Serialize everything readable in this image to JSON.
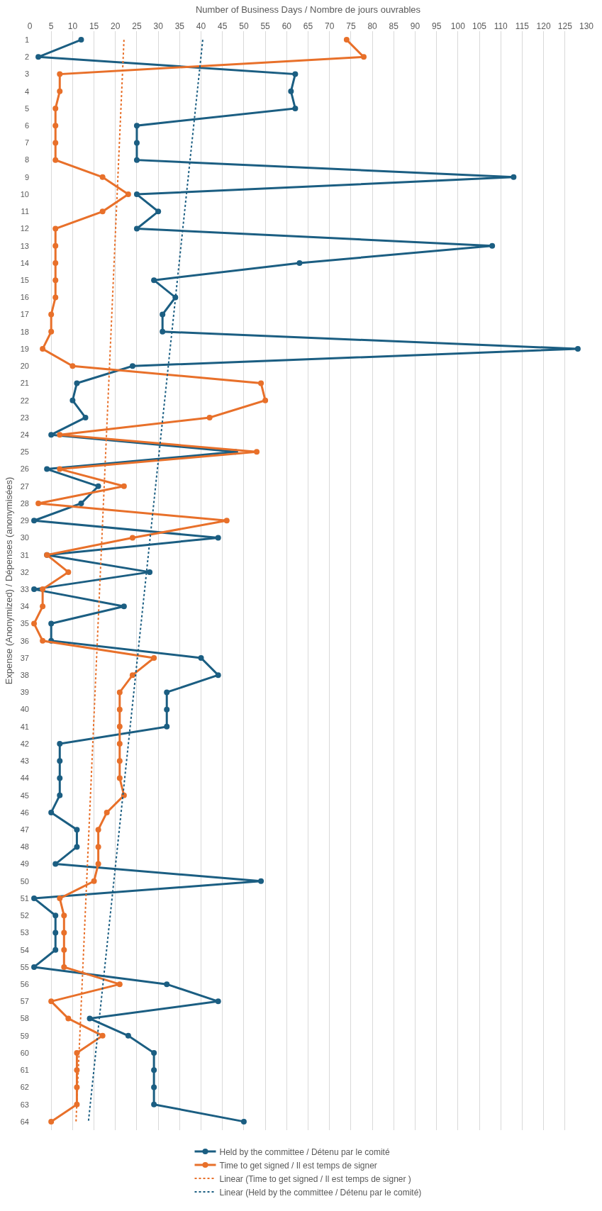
{
  "chart_data": {
    "type": "line",
    "orientation": "horizontal",
    "xlabel": "Number of Business Days / Nombre de jours ouvrables",
    "ylabel": "Expense (Anonymized) / Dépenses (anonymisées)",
    "categories": [
      "1",
      "2",
      "3",
      "4",
      "5",
      "6",
      "7",
      "8",
      "9",
      "10",
      "11",
      "12",
      "13",
      "14",
      "15",
      "16",
      "17",
      "18",
      "19",
      "20",
      "21",
      "22",
      "23",
      "24",
      "25",
      "26",
      "27",
      "28",
      "29",
      "30",
      "31",
      "32",
      "33",
      "34",
      "35",
      "36",
      "37",
      "38",
      "39",
      "40",
      "41",
      "42",
      "43",
      "44",
      "45",
      "46",
      "47",
      "48",
      "49",
      "50",
      "51",
      "52",
      "53",
      "54",
      "55",
      "56",
      "57",
      "58",
      "59",
      "60",
      "61",
      "62",
      "63",
      "64"
    ],
    "xlim": [
      0,
      130
    ],
    "xticks": [
      0,
      5,
      10,
      15,
      20,
      25,
      30,
      35,
      40,
      45,
      50,
      55,
      60,
      65,
      70,
      75,
      80,
      85,
      90,
      95,
      100,
      105,
      110,
      115,
      120,
      125,
      130
    ],
    "grid": "x",
    "legend": "bottom",
    "marker": "circle",
    "line_style": "solid",
    "series": [
      {
        "name": "Held by the committee / Détenu par le comité",
        "color": "#1b5e82",
        "values": [
          12,
          2,
          62,
          61,
          62,
          25,
          25,
          25,
          113,
          25,
          30,
          25,
          108,
          63,
          29,
          34,
          31,
          31,
          128,
          24,
          11,
          10,
          13,
          5,
          48,
          4,
          16,
          12,
          1,
          44,
          4,
          28,
          1,
          22,
          5,
          5,
          40,
          44,
          32,
          32,
          32,
          7,
          7,
          7,
          7,
          5,
          11,
          11,
          6,
          54,
          1,
          6,
          6,
          6,
          1,
          32,
          44,
          14,
          23,
          29,
          29,
          29,
          29,
          50
        ]
      },
      {
        "name": "Time to get signed / Il est temps de signer",
        "color": "#e8702a",
        "values": [
          74,
          78,
          7,
          7,
          6,
          6,
          6,
          6,
          17,
          23,
          17,
          6,
          6,
          6,
          6,
          6,
          5,
          5,
          3,
          10,
          54,
          55,
          42,
          7,
          53,
          7,
          22,
          2,
          46,
          24,
          4,
          9,
          3,
          3,
          1,
          3,
          29,
          24,
          21,
          21,
          21,
          21,
          21,
          21,
          22,
          18,
          16,
          16,
          16,
          15,
          7,
          8,
          8,
          8,
          8,
          21,
          5,
          9,
          17,
          11,
          11,
          11,
          11,
          5
        ]
      },
      {
        "name": "Linear (Time to get signed / Il est temps de signer )",
        "type": "line",
        "color": "#e8702a",
        "marker": "none",
        "line_style": "dotted",
        "x": [
          "1",
          "64"
        ],
        "values": [
          22,
          10.8
        ]
      },
      {
        "name": "Linear (Held by the committee / Détenu par le comité)",
        "type": "line",
        "color": "#1b5e82",
        "marker": "none",
        "line_style": "dotted",
        "x": [
          "1",
          "64"
        ],
        "values": [
          40.4,
          13.7
        ]
      }
    ]
  }
}
